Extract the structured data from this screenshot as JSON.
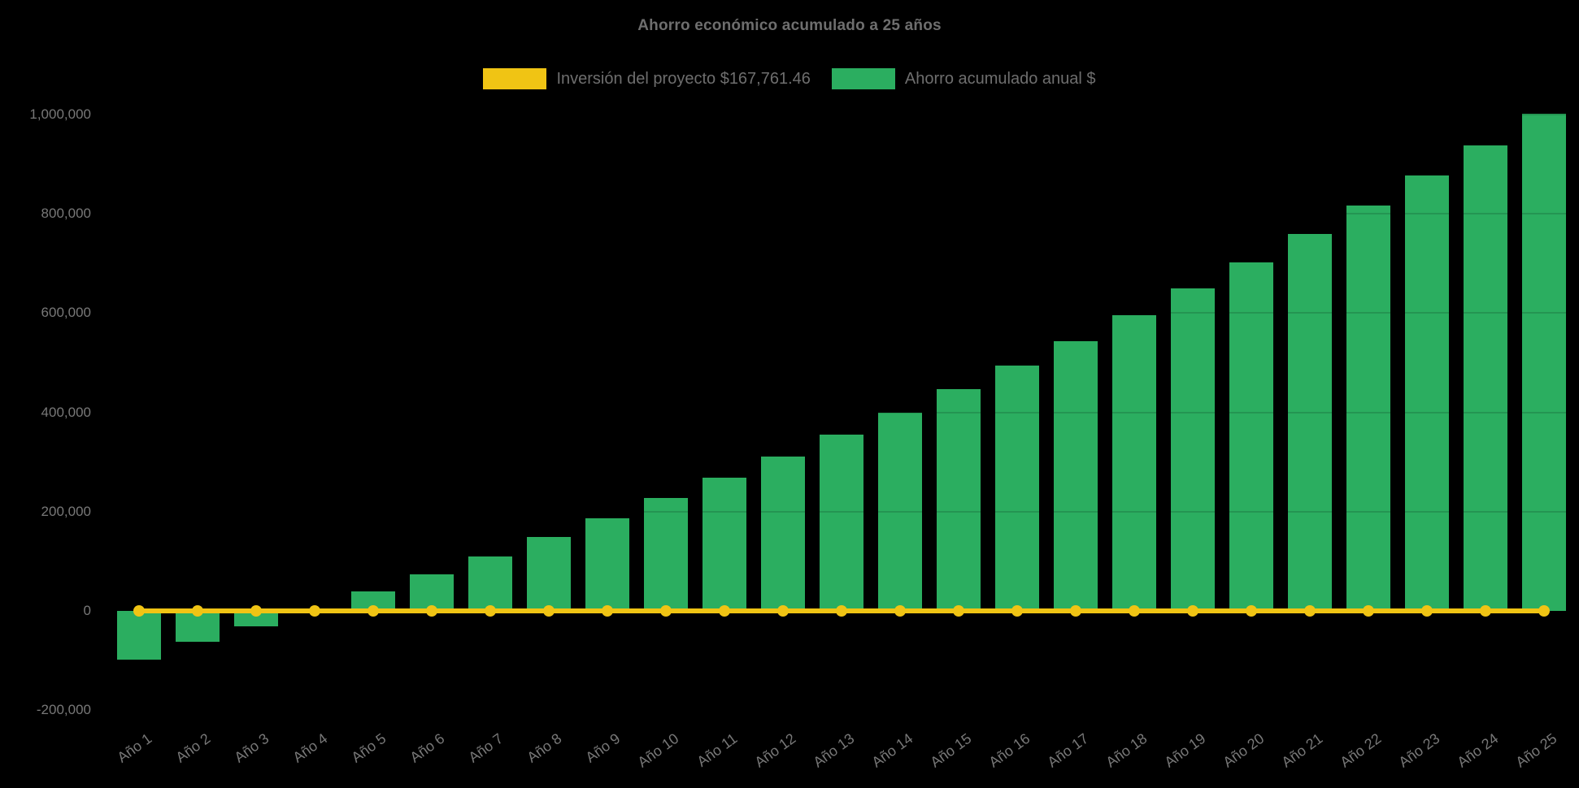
{
  "page": {
    "background": "#000000"
  },
  "header": {
    "title": "Ahorro económico acumulado a 25 años"
  },
  "legend": {
    "items": [
      {
        "label": "Inversión del proyecto $167,761.46",
        "color": "#F0C414"
      },
      {
        "label": "Ahorro acumulado anual $",
        "color": "#2BAE60"
      }
    ]
  },
  "chart_data": {
    "type": "bar",
    "title": "Ahorro económico acumulado a 25 años",
    "categories": [
      "Año 1",
      "Año 2",
      "Año 3",
      "Año 4",
      "Año 5",
      "Año 6",
      "Año 7",
      "Año 8",
      "Año 9",
      "Año 10",
      "Año 11",
      "Año 12",
      "Año 13",
      "Año 14",
      "Año 15",
      "Año 16",
      "Año 17",
      "Año 18",
      "Año 19",
      "Año 20",
      "Año 21",
      "Año 22",
      "Año 23",
      "Año 24",
      "Año 25"
    ],
    "series": [
      {
        "name": "Inversión del proyecto $167,761.46",
        "type": "line",
        "color": "#F0C414",
        "values": [
          0,
          0,
          0,
          0,
          0,
          0,
          0,
          0,
          0,
          0,
          0,
          0,
          0,
          0,
          0,
          0,
          0,
          0,
          0,
          0,
          0,
          0,
          0,
          0,
          0
        ]
      },
      {
        "name": "Ahorro acumulado anual $",
        "type": "bar",
        "color": "#2BAE60",
        "values": [
          -98000,
          -62500,
          -31000,
          4000,
          38500,
          74000,
          109500,
          148500,
          187000,
          228000,
          269000,
          311500,
          355000,
          399500,
          446500,
          493500,
          543000,
          596000,
          649000,
          702500,
          759000,
          816500,
          876500,
          938000,
          1001000
        ]
      }
    ],
    "xlabel": "",
    "ylabel": "",
    "yticks": [
      -200000,
      0,
      200000,
      400000,
      600000,
      800000,
      1000000
    ],
    "ylim": [
      -200000,
      1000000
    ],
    "grid": false,
    "legend_position": "top",
    "background": "#000000",
    "text_color": "#6E6E6E"
  }
}
